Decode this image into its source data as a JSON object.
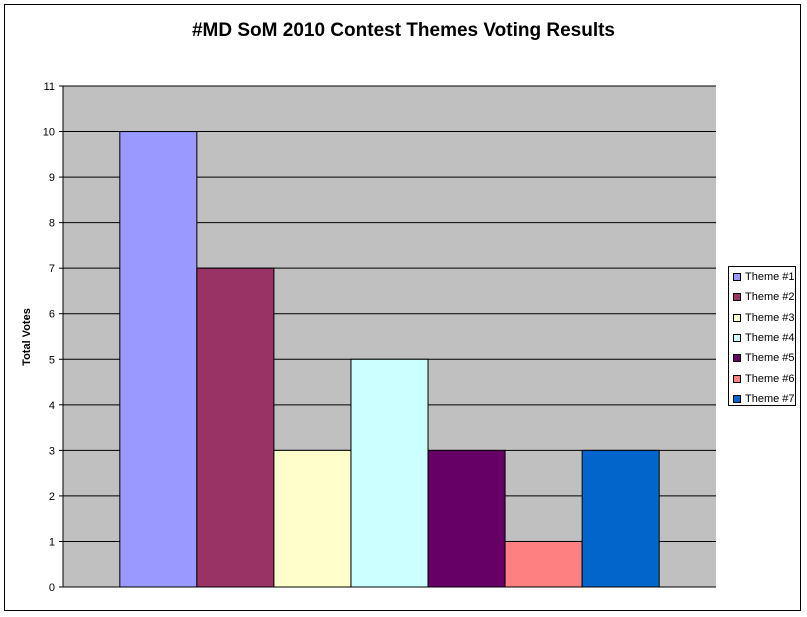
{
  "chart_data": {
    "type": "bar",
    "title": "#MD SoM 2010 Contest Themes Voting Results",
    "xlabel": "",
    "ylabel": "Total Votes",
    "ylim": [
      0,
      11
    ],
    "yticks": [
      "0",
      "1",
      "2",
      "3",
      "4",
      "5",
      "6",
      "7",
      "8",
      "9",
      "10",
      "11"
    ],
    "grid": true,
    "legend_position": "right",
    "plot_background": "#c0c0c0",
    "series": [
      {
        "name": "Theme #1",
        "values": [
          10
        ],
        "color": "#9999ff"
      },
      {
        "name": "Theme #2",
        "values": [
          7
        ],
        "color": "#993366"
      },
      {
        "name": "Theme #3",
        "values": [
          3
        ],
        "color": "#ffffcc"
      },
      {
        "name": "Theme #4",
        "values": [
          5
        ],
        "color": "#ccffff"
      },
      {
        "name": "Theme #5",
        "values": [
          3
        ],
        "color": "#660066"
      },
      {
        "name": "Theme #6",
        "values": [
          1
        ],
        "color": "#ff8080"
      },
      {
        "name": "Theme #7",
        "values": [
          3
        ],
        "color": "#0066cc"
      }
    ]
  }
}
